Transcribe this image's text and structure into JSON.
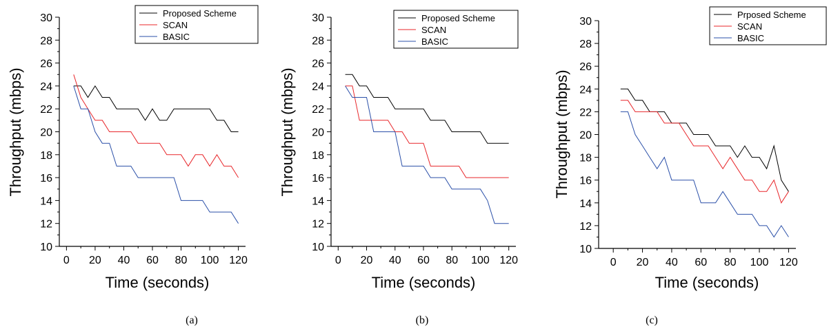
{
  "chart_data": [
    {
      "type": "line",
      "caption": "(a)",
      "xlabel": "Time (seconds)",
      "ylabel": "Throughput (mbps)",
      "xlim": [
        -5,
        125
      ],
      "ylim": [
        10,
        30
      ],
      "xticks": [
        0,
        20,
        40,
        60,
        80,
        100,
        120
      ],
      "yticks": [
        10,
        12,
        14,
        16,
        18,
        20,
        22,
        24,
        26,
        28,
        30
      ],
      "grid": false,
      "legend_position": "top-right",
      "series": [
        {
          "name": "Proposed Scheme",
          "color": "#000000",
          "x": [
            5,
            10,
            15,
            20,
            25,
            30,
            35,
            40,
            45,
            50,
            55,
            60,
            65,
            70,
            75,
            80,
            85,
            90,
            95,
            100,
            105,
            110,
            115,
            120
          ],
          "y": [
            24,
            24,
            23,
            24,
            23,
            23,
            22,
            22,
            22,
            22,
            21,
            22,
            21,
            21,
            22,
            22,
            22,
            22,
            22,
            22,
            21,
            21,
            20,
            20
          ]
        },
        {
          "name": "SCAN",
          "color": "#e8262a",
          "x": [
            5,
            10,
            15,
            20,
            25,
            30,
            35,
            40,
            45,
            50,
            55,
            60,
            65,
            70,
            75,
            80,
            85,
            90,
            95,
            100,
            105,
            110,
            115,
            120
          ],
          "y": [
            25,
            23,
            22,
            21,
            21,
            20,
            20,
            20,
            20,
            19,
            19,
            19,
            19,
            18,
            18,
            18,
            17,
            18,
            18,
            17,
            18,
            17,
            17,
            16
          ]
        },
        {
          "name": "BASIC",
          "color": "#2a4fa8",
          "x": [
            5,
            10,
            15,
            20,
            25,
            30,
            35,
            40,
            45,
            50,
            55,
            60,
            65,
            70,
            75,
            80,
            85,
            90,
            95,
            100,
            105,
            110,
            115,
            120
          ],
          "y": [
            24,
            22,
            22,
            20,
            19,
            19,
            17,
            17,
            17,
            16,
            16,
            16,
            16,
            16,
            16,
            14,
            14,
            14,
            14,
            13,
            13,
            13,
            13,
            12
          ]
        }
      ]
    },
    {
      "type": "line",
      "caption": "(b)",
      "xlabel": "Time (seconds)",
      "ylabel": "Throughput (mbps)",
      "xlim": [
        -5,
        125
      ],
      "ylim": [
        10,
        30
      ],
      "xticks": [
        0,
        20,
        40,
        60,
        80,
        100,
        120
      ],
      "yticks": [
        10,
        12,
        14,
        16,
        18,
        20,
        22,
        24,
        26,
        28,
        30
      ],
      "grid": false,
      "legend_position": "top-right",
      "series": [
        {
          "name": "Proposed Scheme",
          "color": "#000000",
          "x": [
            5,
            10,
            15,
            20,
            25,
            30,
            35,
            40,
            45,
            50,
            55,
            60,
            65,
            70,
            75,
            80,
            85,
            90,
            95,
            100,
            105,
            110,
            115,
            120
          ],
          "y": [
            25,
            25,
            24,
            24,
            23,
            23,
            23,
            22,
            22,
            22,
            22,
            22,
            21,
            21,
            21,
            20,
            20,
            20,
            20,
            20,
            19,
            19,
            19,
            19
          ]
        },
        {
          "name": "SCAN",
          "color": "#e8262a",
          "x": [
            5,
            10,
            15,
            20,
            25,
            30,
            35,
            40,
            45,
            50,
            55,
            60,
            65,
            70,
            75,
            80,
            85,
            90,
            95,
            100,
            105,
            110,
            115,
            120
          ],
          "y": [
            24,
            24,
            21,
            21,
            21,
            21,
            21,
            20,
            20,
            19,
            19,
            19,
            17,
            17,
            17,
            17,
            17,
            16,
            16,
            16,
            16,
            16,
            16,
            16
          ]
        },
        {
          "name": "BASIC",
          "color": "#2a4fa8",
          "x": [
            5,
            10,
            15,
            20,
            25,
            30,
            35,
            40,
            45,
            50,
            55,
            60,
            65,
            70,
            75,
            80,
            85,
            90,
            95,
            100,
            105,
            110,
            115,
            120
          ],
          "y": [
            24,
            23,
            23,
            23,
            20,
            20,
            20,
            20,
            17,
            17,
            17,
            17,
            16,
            16,
            16,
            15,
            15,
            15,
            15,
            15,
            14,
            12,
            12,
            12
          ]
        }
      ]
    },
    {
      "type": "line",
      "caption": "(c)",
      "xlabel": "Time (seconds)",
      "ylabel": "Throughput (mbps)",
      "xlim": [
        -10,
        125
      ],
      "ylim": [
        10,
        30
      ],
      "xticks": [
        0,
        20,
        40,
        60,
        80,
        100,
        120
      ],
      "yticks": [
        10,
        12,
        14,
        16,
        18,
        20,
        22,
        24,
        26,
        28,
        30
      ],
      "grid": false,
      "legend_position": "top-right",
      "series": [
        {
          "name": "Prposed Scheme",
          "color": "#000000",
          "x": [
            5,
            10,
            15,
            20,
            25,
            30,
            35,
            40,
            45,
            50,
            55,
            60,
            65,
            70,
            75,
            80,
            85,
            90,
            95,
            100,
            105,
            110,
            115,
            120
          ],
          "y": [
            24,
            24,
            23,
            23,
            22,
            22,
            22,
            21,
            21,
            21,
            20,
            20,
            20,
            19,
            19,
            19,
            18,
            19,
            18,
            18,
            17,
            19,
            16,
            15
          ]
        },
        {
          "name": "SCAN",
          "color": "#e8262a",
          "x": [
            5,
            10,
            15,
            20,
            25,
            30,
            35,
            40,
            45,
            50,
            55,
            60,
            65,
            70,
            75,
            80,
            85,
            90,
            95,
            100,
            105,
            110,
            115,
            120
          ],
          "y": [
            23,
            23,
            22,
            22,
            22,
            22,
            21,
            21,
            21,
            20,
            19,
            19,
            19,
            18,
            17,
            18,
            17,
            16,
            16,
            15,
            15,
            16,
            14,
            15
          ]
        },
        {
          "name": "BASIC",
          "color": "#2a4fa8",
          "x": [
            5,
            10,
            15,
            20,
            25,
            30,
            35,
            40,
            45,
            50,
            55,
            60,
            65,
            70,
            75,
            80,
            85,
            90,
            95,
            100,
            105,
            110,
            115,
            120
          ],
          "y": [
            22,
            22,
            20,
            19,
            18,
            17,
            18,
            16,
            16,
            16,
            16,
            14,
            14,
            14,
            15,
            14,
            13,
            13,
            13,
            12,
            12,
            11,
            12,
            11
          ]
        }
      ]
    }
  ]
}
